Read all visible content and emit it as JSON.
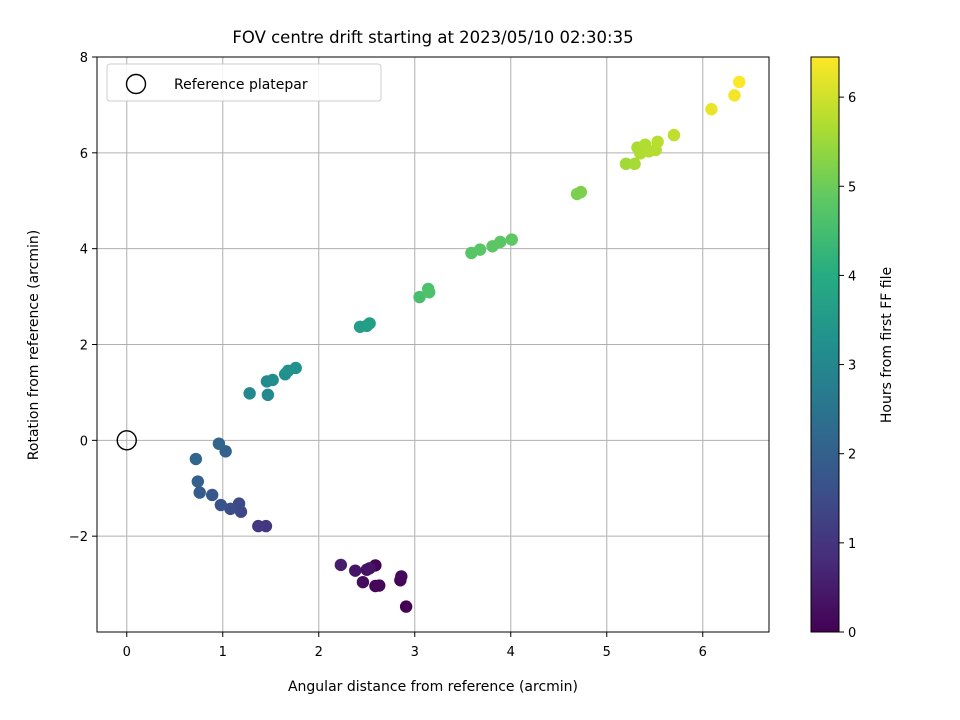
{
  "chart_data": {
    "type": "scatter",
    "title": "FOV centre drift starting at 2023/05/10 02:30:35",
    "xlabel": "Angular distance from reference (arcmin)",
    "ylabel": "Rotation from reference (arcmin)",
    "xlim": [
      -0.31,
      6.69
    ],
    "ylim": [
      -4.0,
      8.0
    ],
    "x_ticks": [
      0,
      1,
      2,
      3,
      4,
      5,
      6
    ],
    "y_ticks": [
      -2,
      0,
      2,
      4,
      6,
      8
    ],
    "x_tick_labels": [
      "0",
      "1",
      "2",
      "3",
      "4",
      "5",
      "6"
    ],
    "y_tick_labels": [
      "−2",
      "0",
      "2",
      "4",
      "6",
      "8"
    ],
    "grid": true,
    "legend": {
      "position": "top-left",
      "entries": [
        {
          "label": "Reference platepar",
          "marker": "open-circle",
          "color": "#000000"
        }
      ]
    },
    "reference_point": {
      "x": 0.0,
      "y": 0.0
    },
    "colorbar": {
      "label": "Hours from first FF file",
      "colormap": "viridis",
      "min": 0,
      "max": 6.45,
      "ticks": [
        0,
        1,
        2,
        3,
        4,
        5,
        6
      ],
      "tick_labels": [
        "0",
        "1",
        "2",
        "3",
        "4",
        "5",
        "6"
      ]
    },
    "points": [
      {
        "x": 2.91,
        "y": -3.47,
        "hours": 0.0
      },
      {
        "x": 2.59,
        "y": -3.04,
        "hours": 0.08
      },
      {
        "x": 2.63,
        "y": -3.03,
        "hours": 0.12
      },
      {
        "x": 2.46,
        "y": -2.96,
        "hours": 0.18
      },
      {
        "x": 2.85,
        "y": -2.92,
        "hours": 0.1
      },
      {
        "x": 2.86,
        "y": -2.84,
        "hours": 0.15
      },
      {
        "x": 2.59,
        "y": -2.61,
        "hours": 0.05
      },
      {
        "x": 2.5,
        "y": -2.7,
        "hours": 0.3
      },
      {
        "x": 2.53,
        "y": -2.67,
        "hours": 0.35
      },
      {
        "x": 2.38,
        "y": -2.72,
        "hours": 0.4
      },
      {
        "x": 2.23,
        "y": -2.6,
        "hours": 0.5
      },
      {
        "x": 1.45,
        "y": -1.79,
        "hours": 1.05
      },
      {
        "x": 1.37,
        "y": -1.79,
        "hours": 1.1
      },
      {
        "x": 1.19,
        "y": -1.49,
        "hours": 1.4
      },
      {
        "x": 1.17,
        "y": -1.32,
        "hours": 1.45
      },
      {
        "x": 1.08,
        "y": -1.43,
        "hours": 1.55
      },
      {
        "x": 0.98,
        "y": -1.35,
        "hours": 1.65
      },
      {
        "x": 0.89,
        "y": -1.14,
        "hours": 1.8
      },
      {
        "x": 0.76,
        "y": -1.09,
        "hours": 1.9
      },
      {
        "x": 0.74,
        "y": -0.86,
        "hours": 2.0
      },
      {
        "x": 0.72,
        "y": -0.39,
        "hours": 2.2
      },
      {
        "x": 1.03,
        "y": -0.23,
        "hours": 2.05
      },
      {
        "x": 0.96,
        "y": -0.07,
        "hours": 2.15
      },
      {
        "x": 1.28,
        "y": 0.98,
        "hours": 3.0
      },
      {
        "x": 1.47,
        "y": 0.95,
        "hours": 3.05
      },
      {
        "x": 1.46,
        "y": 1.23,
        "hours": 3.1
      },
      {
        "x": 1.52,
        "y": 1.26,
        "hours": 3.15
      },
      {
        "x": 1.65,
        "y": 1.38,
        "hours": 3.2
      },
      {
        "x": 1.68,
        "y": 1.45,
        "hours": 3.25
      },
      {
        "x": 1.76,
        "y": 1.51,
        "hours": 3.3
      },
      {
        "x": 2.43,
        "y": 2.37,
        "hours": 3.55
      },
      {
        "x": 2.5,
        "y": 2.39,
        "hours": 3.6
      },
      {
        "x": 2.53,
        "y": 2.44,
        "hours": 3.65
      },
      {
        "x": 3.05,
        "y": 2.99,
        "hours": 4.55
      },
      {
        "x": 3.14,
        "y": 3.16,
        "hours": 4.6
      },
      {
        "x": 3.15,
        "y": 3.09,
        "hours": 4.62
      },
      {
        "x": 3.59,
        "y": 3.91,
        "hours": 4.75
      },
      {
        "x": 3.68,
        "y": 3.98,
        "hours": 4.78
      },
      {
        "x": 3.81,
        "y": 4.05,
        "hours": 4.8
      },
      {
        "x": 3.89,
        "y": 4.14,
        "hours": 4.82
      },
      {
        "x": 4.01,
        "y": 4.19,
        "hours": 4.85
      },
      {
        "x": 4.69,
        "y": 5.14,
        "hours": 5.15
      },
      {
        "x": 4.73,
        "y": 5.18,
        "hours": 5.18
      },
      {
        "x": 5.2,
        "y": 5.77,
        "hours": 5.55
      },
      {
        "x": 5.29,
        "y": 5.77,
        "hours": 5.6
      },
      {
        "x": 5.32,
        "y": 6.11,
        "hours": 5.65
      },
      {
        "x": 5.35,
        "y": 5.99,
        "hours": 5.68
      },
      {
        "x": 5.4,
        "y": 6.17,
        "hours": 5.7
      },
      {
        "x": 5.44,
        "y": 6.03,
        "hours": 5.72
      },
      {
        "x": 5.51,
        "y": 6.06,
        "hours": 5.75
      },
      {
        "x": 5.53,
        "y": 6.23,
        "hours": 5.78
      },
      {
        "x": 5.7,
        "y": 6.37,
        "hours": 5.85
      },
      {
        "x": 6.09,
        "y": 6.91,
        "hours": 6.25
      },
      {
        "x": 6.33,
        "y": 7.2,
        "hours": 6.35
      },
      {
        "x": 6.38,
        "y": 7.48,
        "hours": 6.42
      }
    ]
  }
}
